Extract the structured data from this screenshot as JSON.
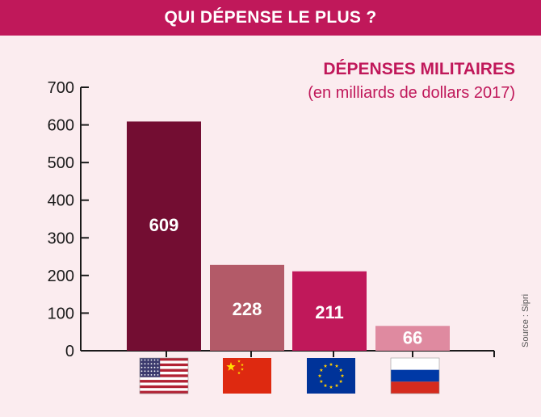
{
  "header": {
    "title": "QUI DÉPENSE LE PLUS ?"
  },
  "source": "Source : Sipri",
  "colors": {
    "header_bg": "#c0185a",
    "background": "#fbecef",
    "bar_usa": "#730d32",
    "bar_china": "#b35a68",
    "bar_eu": "#c0185a",
    "bar_russia": "#df8aa0"
  },
  "chart_data": {
    "type": "bar",
    "title": "DÉPENSES MILITAIRES",
    "subtitle": "(en milliards de dollars 2017)",
    "categories": [
      "usa-flag-icon",
      "china-flag-icon",
      "eu-flag-icon",
      "russia-flag-icon"
    ],
    "values": [
      609,
      228,
      211,
      66
    ],
    "data_labels": [
      "609",
      "228",
      "211",
      "66"
    ],
    "bar_colors": [
      "#730d32",
      "#b35a68",
      "#c0185a",
      "#df8aa0"
    ],
    "ylim": [
      0,
      700
    ],
    "yticks": [
      0,
      100,
      200,
      300,
      400,
      500,
      600,
      700
    ],
    "ytick_labels": [
      "0",
      "100",
      "200",
      "300",
      "400",
      "500",
      "600",
      "700"
    ],
    "grid": false,
    "legend": "none"
  }
}
